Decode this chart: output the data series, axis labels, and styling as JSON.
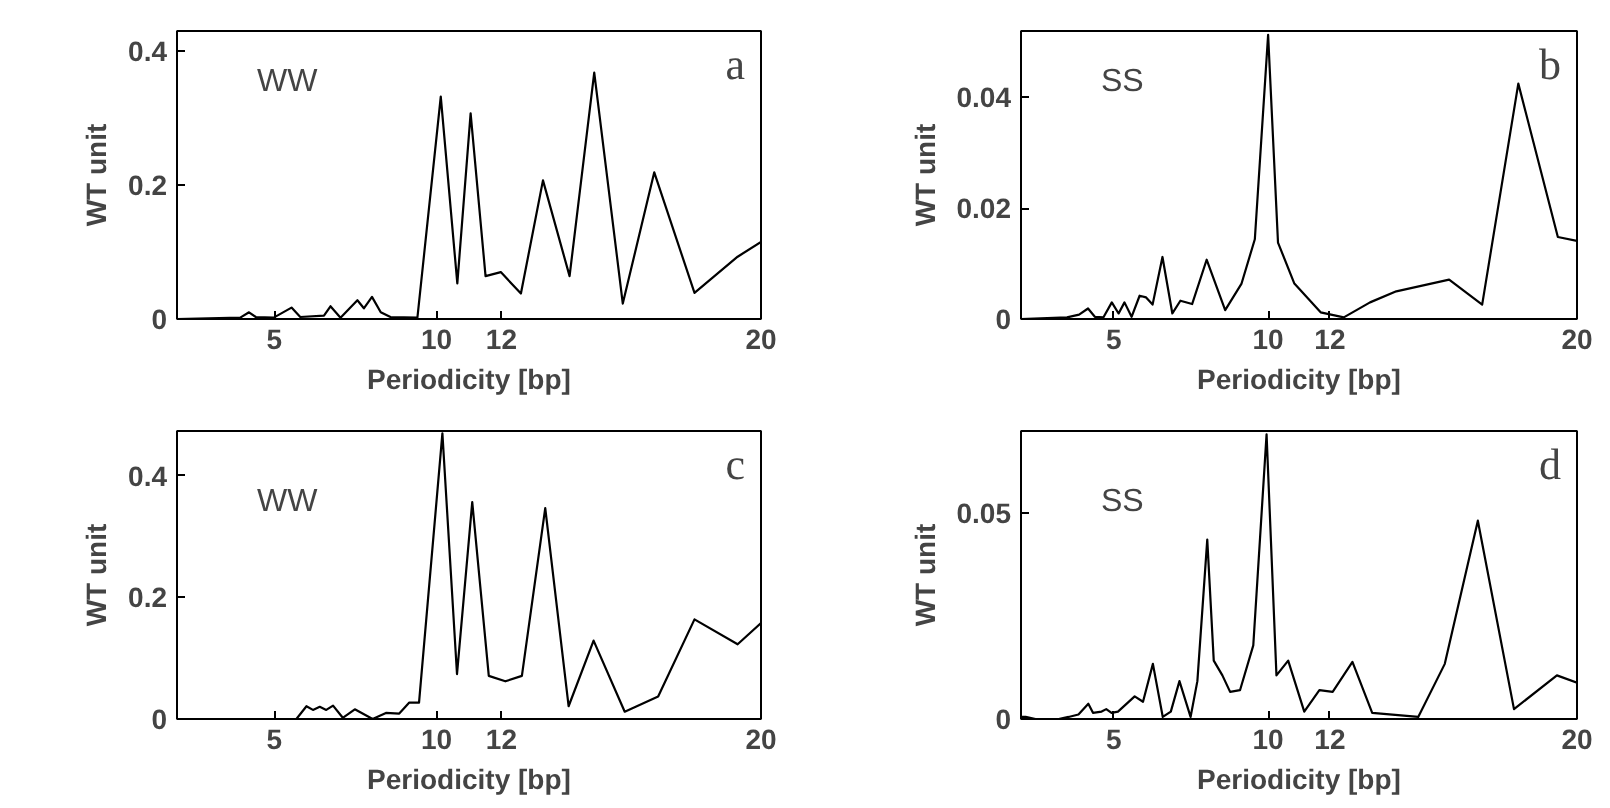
{
  "chart_data": [
    {
      "type": "line",
      "xlabel": "Periodicity [bp]",
      "ylabel": "WT unit",
      "annotations": [
        "WW",
        "a"
      ],
      "xlim": [
        2,
        20
      ],
      "xticks": [
        5,
        10,
        12,
        20
      ],
      "ylim": [
        0,
        0.43
      ],
      "yticks": [
        0,
        0.2,
        0.4
      ],
      "series": [
        {
          "color": "#000000",
          "x": [
            2.0,
            3.95,
            4.22,
            4.43,
            4.98,
            5.53,
            5.8,
            6.53,
            6.73,
            7.04,
            7.56,
            7.76,
            8.01,
            8.28,
            8.58,
            9.41,
            10.13,
            10.64,
            11.05,
            11.51,
            11.98,
            12.6,
            13.28,
            14.1,
            14.86,
            15.74,
            16.71,
            17.95,
            19.28,
            20.0
          ],
          "values": [
            0,
            0.002,
            0.01,
            0.003,
            0.002,
            0.017,
            0.003,
            0.005,
            0.019,
            0.002,
            0.028,
            0.016,
            0.033,
            0.01,
            0.003,
            0.002,
            0.332,
            0.053,
            0.307,
            0.064,
            0.07,
            0.038,
            0.207,
            0.064,
            0.368,
            0.023,
            0.219,
            0.039,
            0.093,
            0.115
          ]
        }
      ]
    },
    {
      "type": "line",
      "xlabel": "Periodicity [bp]",
      "ylabel": "WT unit",
      "annotations": [
        "SS",
        "b"
      ],
      "xlim": [
        2,
        20
      ],
      "xticks": [
        5,
        10,
        12,
        20
      ],
      "ylim": [
        0,
        0.052
      ],
      "yticks": [
        0,
        0.02,
        0.04
      ],
      "series": [
        {
          "color": "#000000",
          "x": [
            2.0,
            3.49,
            3.88,
            4.17,
            4.39,
            4.67,
            4.94,
            5.16,
            5.35,
            5.58,
            5.84,
            6.05,
            6.26,
            6.58,
            6.9,
            7.16,
            7.54,
            8.01,
            8.61,
            9.14,
            9.57,
            10.0,
            10.32,
            10.85,
            11.7,
            12.45,
            13.3,
            14.15,
            15.86,
            16.93,
            18.1,
            19.38,
            20.0
          ],
          "values": [
            0,
            0.0003,
            0.0008,
            0.0019,
            0.0004,
            0.0003,
            0.003,
            0.001,
            0.003,
            0.0004,
            0.0042,
            0.0039,
            0.0026,
            0.0112,
            0.001,
            0.0033,
            0.0027,
            0.0107,
            0.0016,
            0.0064,
            0.0144,
            0.0513,
            0.0138,
            0.0064,
            0.0012,
            0.0003,
            0.003,
            0.005,
            0.0071,
            0.0026,
            0.0425,
            0.0148,
            0.0141
          ]
        }
      ]
    },
    {
      "type": "line",
      "xlabel": "Periodicity [bp]",
      "ylabel": "WT unit",
      "annotations": [
        "WW",
        "c"
      ],
      "xlim": [
        2,
        20
      ],
      "xticks": [
        5,
        10,
        12,
        20
      ],
      "ylim": [
        0,
        0.474
      ],
      "yticks": [
        0,
        0.2,
        0.4
      ],
      "series": [
        {
          "color": "#000000",
          "x": [
            2.0,
            4.86,
            5.68,
            5.99,
            6.19,
            6.4,
            6.6,
            6.81,
            7.11,
            7.48,
            8.03,
            8.44,
            8.85,
            9.16,
            9.46,
            10.18,
            10.63,
            11.1,
            11.61,
            12.12,
            12.63,
            13.35,
            14.07,
            14.84,
            15.8,
            16.83,
            17.95,
            19.28,
            20.0
          ],
          "values": [
            0,
            0,
            0,
            0.021,
            0.015,
            0.02,
            0.015,
            0.022,
            0.002,
            0.016,
            0,
            0.01,
            0.009,
            0.027,
            0.027,
            0.47,
            0.074,
            0.357,
            0.071,
            0.062,
            0.071,
            0.347,
            0.021,
            0.129,
            0.012,
            0.037,
            0.164,
            0.123,
            0.158
          ]
        }
      ]
    },
    {
      "type": "line",
      "xlabel": "Periodicity [bp]",
      "ylabel": "WT unit",
      "annotations": [
        "SS",
        "d"
      ],
      "xlim": [
        2,
        20
      ],
      "xticks": [
        5,
        10,
        12,
        20
      ],
      "ylim": [
        0,
        0.07
      ],
      "yticks": [
        0,
        0.05
      ],
      "series": [
        {
          "color": "#000000",
          "x": [
            2.0,
            2.15,
            2.47,
            3.22,
            3.54,
            3.86,
            4.18,
            4.33,
            4.61,
            4.76,
            4.93,
            5.14,
            5.68,
            5.95,
            6.27,
            6.59,
            6.85,
            7.13,
            7.49,
            7.71,
            8.03,
            8.24,
            8.52,
            8.77,
            9.09,
            9.52,
            9.95,
            10.27,
            10.65,
            11.17,
            11.66,
            12.09,
            12.73,
            13.37,
            14.86,
            15.72,
            16.79,
            17.96,
            19.35,
            20.0
          ],
          "values": [
            0.0005,
            0.0005,
            0,
            0,
            0.0005,
            0.0011,
            0.0037,
            0.0015,
            0.0018,
            0.0024,
            0.0015,
            0.0018,
            0.0055,
            0.0042,
            0.0134,
            0.0005,
            0.0018,
            0.0092,
            0.0005,
            0.0092,
            0.0436,
            0.0142,
            0.0106,
            0.0066,
            0.007,
            0.0179,
            0.0692,
            0.0106,
            0.0142,
            0.0018,
            0.007,
            0.0066,
            0.0139,
            0.0015,
            0.0005,
            0.0134,
            0.0482,
            0.0024,
            0.0106,
            0.0088
          ]
        }
      ]
    }
  ]
}
